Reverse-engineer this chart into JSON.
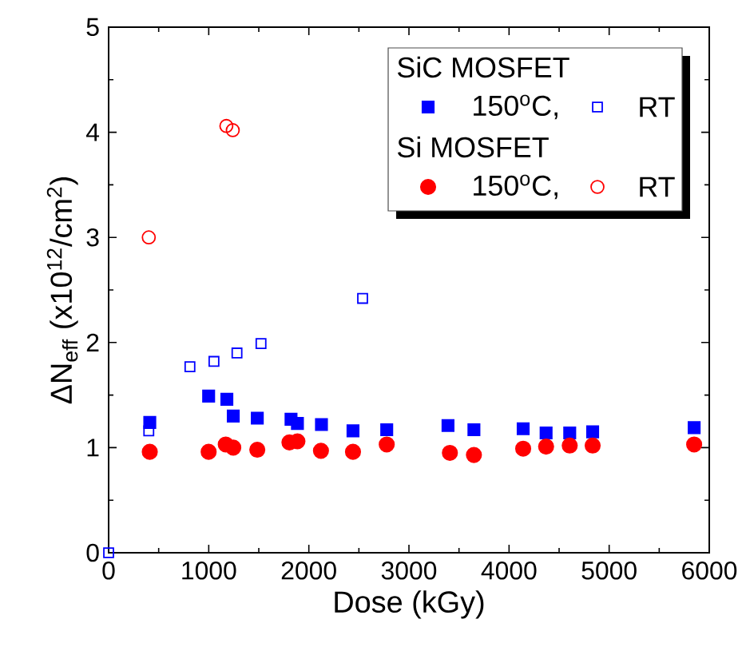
{
  "chart_data": {
    "type": "scatter",
    "xlabel": "Dose (kGy)",
    "ylabel": "ΔN$_{eff}$ (x10$^{12}$/cm$^{2}$)",
    "xlim": [
      0,
      6000
    ],
    "xticks": [
      0,
      1000,
      2000,
      3000,
      4000,
      5000,
      6000
    ],
    "ylim": [
      0,
      5
    ],
    "yticks": [
      0,
      1,
      2,
      3,
      4,
      5
    ],
    "grid": false,
    "legend": "top right",
    "annotations": [
      "SiC MOSFET",
      "Si MOSFET"
    ],
    "series": [
      {
        "name": "150$^{o}$C,",
        "color": "#0000ff",
        "marker": "square",
        "x": [
          411,
          999,
          1181,
          1245,
          1485,
          1822,
          1886,
          2126,
          2441,
          2778,
          3390,
          3649,
          4141,
          4370,
          4606,
          4835,
          5849
        ],
        "values": [
          1.24,
          1.49,
          1.46,
          1.3,
          1.28,
          1.27,
          1.23,
          1.22,
          1.16,
          1.17,
          1.21,
          1.17,
          1.18,
          1.14,
          1.14,
          1.15,
          1.19
        ]
      },
      {
        "name": "RT",
        "color": "#0000ff",
        "marker": "square",
        "x": [
          0,
          401,
          812,
          1052,
          1282,
          1522,
          2537
        ],
        "values": [
          0,
          1.16,
          1.77,
          1.82,
          1.9,
          1.99,
          2.42
        ]
      },
      {
        "name": "150$^{o}$C,",
        "color": "#ff0000",
        "marker": "circle",
        "x": [
          411,
          999,
          1170,
          1245,
          1485,
          1806,
          1886,
          2121,
          2441,
          2778,
          3409,
          3649,
          4141,
          4370,
          4606,
          4835,
          5849
        ],
        "values": [
          0.96,
          0.96,
          1.03,
          1.0,
          0.98,
          1.05,
          1.06,
          0.97,
          0.96,
          1.03,
          0.95,
          0.93,
          0.99,
          1.01,
          1.02,
          1.02,
          1.03
        ]
      },
      {
        "name": "RT",
        "color": "#ff0000",
        "marker": "circle",
        "x": [
          401,
          1176,
          1240
        ],
        "values": [
          3.0,
          4.06,
          4.02
        ]
      }
    ]
  }
}
